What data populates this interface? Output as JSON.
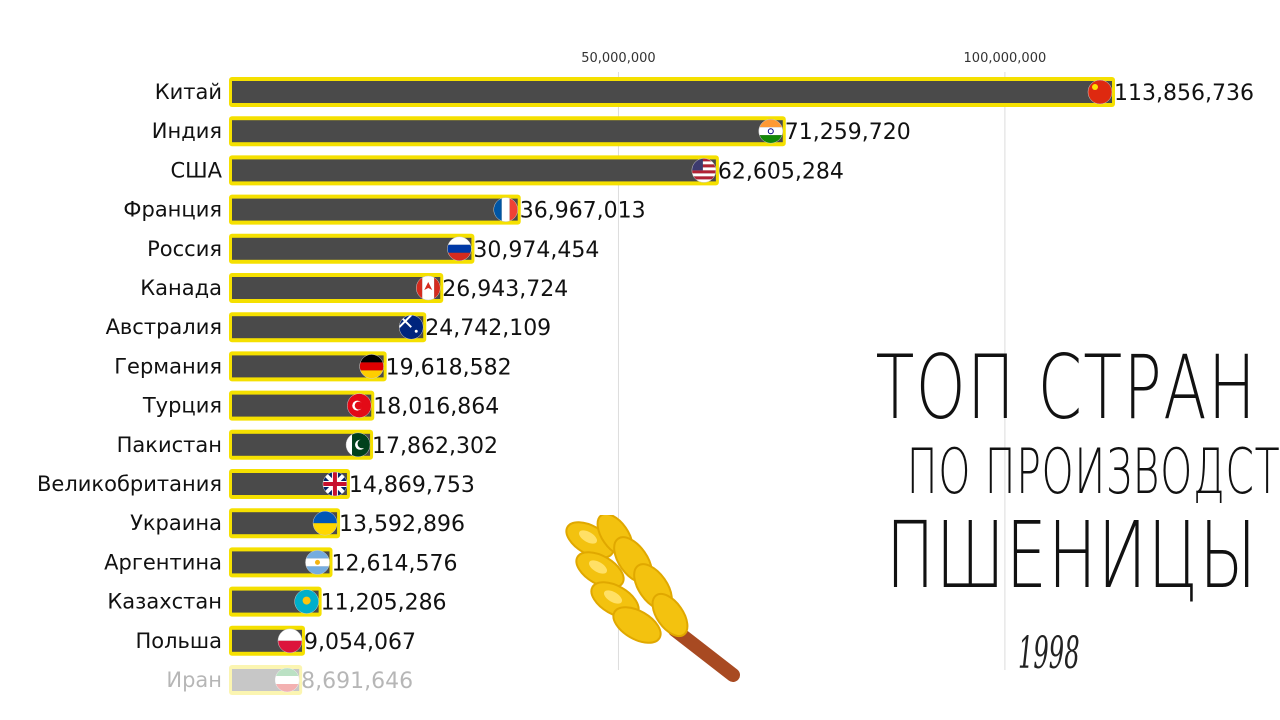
{
  "title": {
    "line1": "ТОП СТРАН",
    "line2": "ПО ПРОИЗВОДСТВУ",
    "line3": "ПШЕНИЦЫ"
  },
  "year": "1998",
  "colors": {
    "bar": "#4a4a4a",
    "bar_glow": "#f5e000",
    "gridline": "#dddddd",
    "wheat": "#f3c20f"
  },
  "chart_data": {
    "type": "bar",
    "orientation": "horizontal",
    "xlim": [
      0,
      120000000
    ],
    "xticks": [
      {
        "value": 50000000,
        "label": "50,000,000"
      },
      {
        "value": 100000000,
        "label": "100,000,000"
      }
    ],
    "categories": [
      "Китай",
      "Индия",
      "США",
      "Франция",
      "Россия",
      "Канада",
      "Австралия",
      "Германия",
      "Турция",
      "Пакистан",
      "Великобритания",
      "Украина",
      "Аргентина",
      "Казахстан",
      "Польша",
      "Иран"
    ],
    "values": [
      113856736,
      71259720,
      62605284,
      36967013,
      30974454,
      26943724,
      24742109,
      19618582,
      18016864,
      17862302,
      14869753,
      13592896,
      12614576,
      11205286,
      9054067,
      8691646
    ],
    "value_labels": [
      "113,856,736",
      "71,259,720",
      "62,605,284",
      "36,967,013",
      "30,974,454",
      "26,943,724",
      "24,742,109",
      "19,618,582",
      "18,016,864",
      "17,862,302",
      "14,869,753",
      "13,592,896",
      "12,614,576",
      "11,205,286",
      "9,054,067",
      "8,691,646"
    ],
    "flags": [
      "china-flag-icon",
      "india-flag-icon",
      "usa-flag-icon",
      "france-flag-icon",
      "russia-flag-icon",
      "canada-flag-icon",
      "australia-flag-icon",
      "germany-flag-icon",
      "turkey-flag-icon",
      "pakistan-flag-icon",
      "uk-flag-icon",
      "ukraine-flag-icon",
      "argentina-flag-icon",
      "kazakhstan-flag-icon",
      "poland-flag-icon",
      "iran-flag-icon"
    ],
    "grid": true
  }
}
